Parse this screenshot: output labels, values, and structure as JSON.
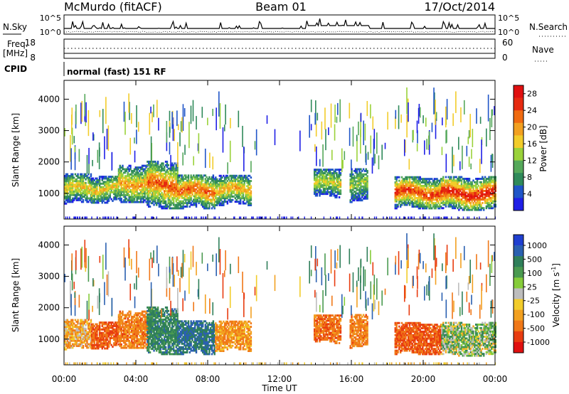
{
  "header": {
    "station": "McMurdo (fitACF)",
    "beam": "Beam 01",
    "date": "17/Oct/2014"
  },
  "top_panel": {
    "left_label": "N.Sky",
    "left_ticks": [
      "10^5",
      "10^0"
    ],
    "right_label": "N.Search",
    "right_ticks": [
      "10^5",
      "10^0"
    ]
  },
  "freq_panel": {
    "left_label_1": "Freq.",
    "left_label_2": "[MHz]",
    "left_ticks": [
      "18",
      "8"
    ],
    "right_label": "Nave",
    "right_ticks": [
      "60",
      "0"
    ]
  },
  "cpid": {
    "label": "CPID",
    "value": "normal (fast) 151 RF"
  },
  "colors": {
    "power_scale": [
      "#1f1fe6",
      "#1f55c8",
      "#2f8a5a",
      "#55a85a",
      "#9ad23a",
      "#f2cc2a",
      "#f2a020",
      "#f06a10",
      "#e62a10",
      "#e01010"
    ],
    "velocity_scale": [
      "#1f3fd0",
      "#2a60b0",
      "#2f7f5a",
      "#4a9a50",
      "#86cc3a",
      "#bdbdbd",
      "#f2cc2a",
      "#f2a020",
      "#f07818",
      "#e83c10",
      "#e01010"
    ]
  },
  "chart_data": [
    {
      "type": "heatmap",
      "title": "",
      "quantity": "Power",
      "ylabel": "Slant Range [km]",
      "xlabel": "Time UT",
      "x_range_hours": [
        0,
        24
      ],
      "ylim": [
        180,
        4600
      ],
      "x_tick_labels": [
        "00:00",
        "04:00",
        "08:00",
        "12:00",
        "16:00",
        "20:00",
        "00:00"
      ],
      "y_tick_labels": [
        "1000",
        "2000",
        "3000",
        "4000"
      ],
      "colorbar_label": "Power [dB]",
      "colorbar_ticks": [
        "4",
        "8",
        "12",
        "16",
        "20",
        "24",
        "28"
      ],
      "colorbar_range": [
        0,
        30
      ],
      "echo_regions": [
        {
          "t": [
            0.0,
            1.5
          ],
          "range_km": [
            650,
            1600
          ],
          "peak_db": 18
        },
        {
          "t": [
            1.5,
            3.0
          ],
          "range_km": [
            680,
            1550
          ],
          "peak_db": 18
        },
        {
          "t": [
            3.0,
            4.6
          ],
          "range_km": [
            700,
            1900
          ],
          "peak_db": 20
        },
        {
          "t": [
            4.6,
            6.3
          ],
          "range_km": [
            500,
            2000
          ],
          "peak_db": 24
        },
        {
          "t": [
            6.3,
            8.4
          ],
          "range_km": [
            500,
            1600
          ],
          "peak_db": 24
        },
        {
          "t": [
            8.4,
            10.4
          ],
          "range_km": [
            600,
            1550
          ],
          "peak_db": 20
        },
        {
          "t": [
            13.9,
            15.4
          ],
          "range_km": [
            850,
            1750
          ],
          "peak_db": 16
        },
        {
          "t": [
            15.9,
            16.9
          ],
          "range_km": [
            700,
            1800
          ],
          "peak_db": 14
        },
        {
          "t": [
            18.4,
            21.0
          ],
          "range_km": [
            500,
            1500
          ],
          "peak_db": 26
        },
        {
          "t": [
            21.0,
            24.0
          ],
          "range_km": [
            450,
            1500
          ],
          "peak_db": 28
        }
      ]
    },
    {
      "type": "heatmap",
      "title": "",
      "quantity": "Velocity",
      "ylabel": "Slant Range [km]",
      "xlabel": "Time UT",
      "x_range_hours": [
        0,
        24
      ],
      "ylim": [
        180,
        4600
      ],
      "x_tick_labels": [
        "00:00",
        "04:00",
        "08:00",
        "12:00",
        "16:00",
        "20:00",
        "00:00"
      ],
      "y_tick_labels": [
        "1000",
        "2000",
        "3000",
        "4000"
      ],
      "colorbar_label": "Velocity [m s^-1]",
      "colorbar_ticks": [
        "1000",
        "500",
        "100",
        "25",
        "-25",
        "-100",
        "-500",
        "-1000"
      ],
      "echo_regions": [
        {
          "t": [
            0.0,
            1.5
          ],
          "range_km": [
            650,
            1600
          ],
          "velocity": -100
        },
        {
          "t": [
            1.5,
            3.0
          ],
          "range_km": [
            680,
            1550
          ],
          "velocity": -300
        },
        {
          "t": [
            3.0,
            4.6
          ],
          "range_km": [
            700,
            1900
          ],
          "velocity": -200
        },
        {
          "t": [
            4.6,
            6.3
          ],
          "range_km": [
            500,
            2000
          ],
          "velocity": 200
        },
        {
          "t": [
            6.3,
            8.4
          ],
          "range_km": [
            500,
            1600
          ],
          "velocity": 300
        },
        {
          "t": [
            8.4,
            10.4
          ],
          "range_km": [
            600,
            1550
          ],
          "velocity": -150
        },
        {
          "t": [
            13.9,
            15.4
          ],
          "range_km": [
            850,
            1750
          ],
          "velocity": -250
        },
        {
          "t": [
            15.9,
            16.9
          ],
          "range_km": [
            700,
            1800
          ],
          "velocity": -200
        },
        {
          "t": [
            18.4,
            21.0
          ],
          "range_km": [
            500,
            1500
          ],
          "velocity": -300
        },
        {
          "t": [
            21.0,
            24.0
          ],
          "range_km": [
            450,
            1500
          ],
          "velocity": 50
        }
      ]
    }
  ]
}
